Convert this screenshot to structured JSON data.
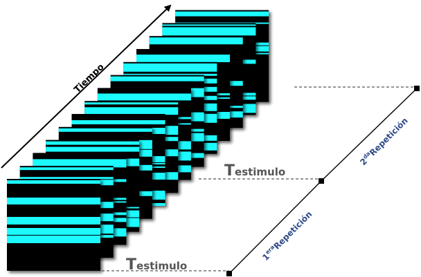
{
  "time_axis": {
    "label": "Tiempo"
  },
  "stimulus_labels": [
    {
      "big": "T",
      "small": "estimulo"
    },
    {
      "big": "T",
      "small": "estimulo"
    }
  ],
  "repetitions": [
    {
      "sup": "era",
      "base_prefix": "1",
      "text": "Repetición"
    },
    {
      "sup": "da",
      "base_prefix": "2",
      "text": "Repetición"
    }
  ],
  "frame_count": 14,
  "colors": {
    "stripe": "#1ff9ff",
    "frame": "#000000",
    "rep_label": "#2d4a86",
    "stimulus_label": "#555555",
    "dash": "#555555"
  }
}
